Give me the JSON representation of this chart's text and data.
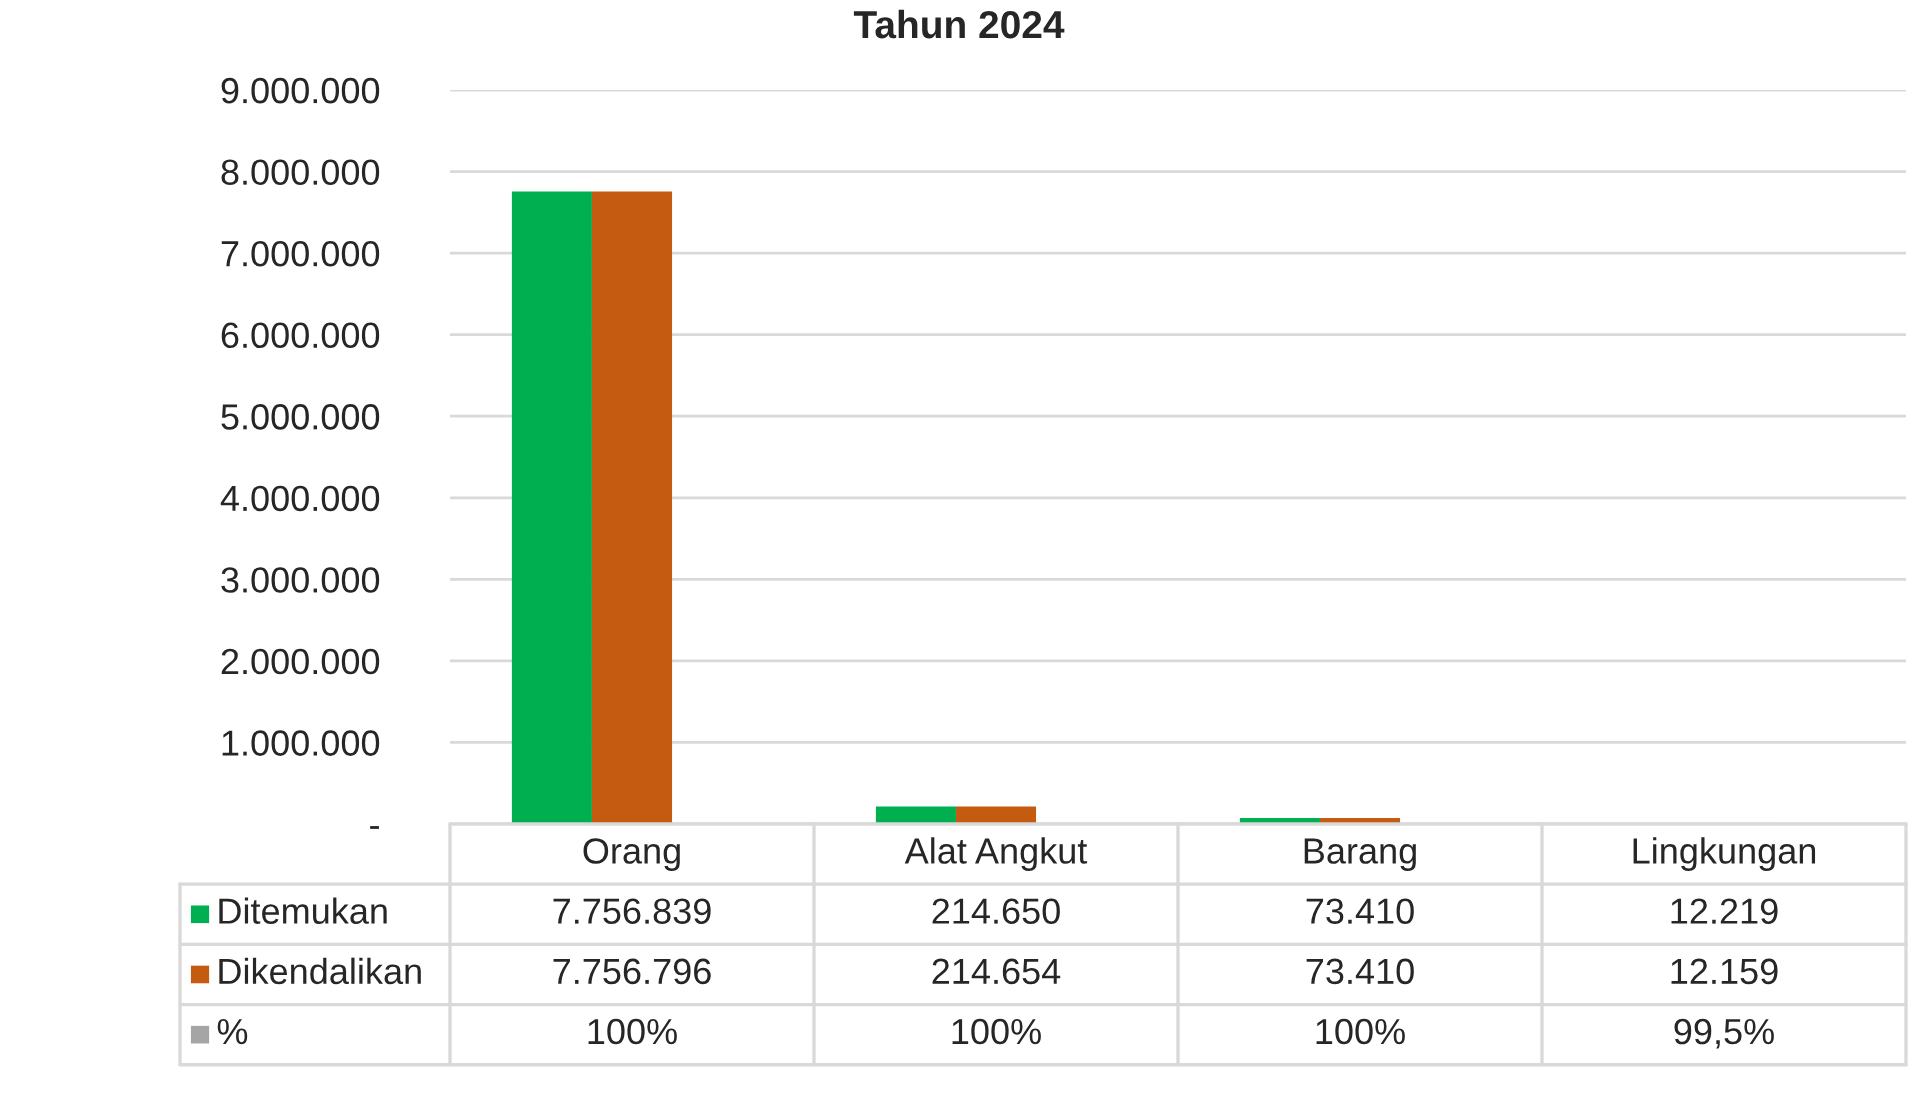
{
  "chart_data": {
    "type": "bar",
    "title": "Tahun 2024",
    "categories": [
      "Orang",
      "Alat Angkut",
      "Barang",
      "Lingkungan"
    ],
    "series": [
      {
        "name": "Ditemukan",
        "color": "#00b050",
        "values": [
          7756839,
          214650,
          73410,
          12219
        ],
        "value_labels": [
          "7.756.839",
          "214.650",
          "73.410",
          "12.219"
        ]
      },
      {
        "name": "Dikendalikan",
        "color": "#c55a11",
        "values": [
          7756796,
          214654,
          73410,
          12159
        ],
        "value_labels": [
          "7.756.796",
          "214.654",
          "73.410",
          "12.159"
        ]
      },
      {
        "name": "%",
        "color": "#a5a5a5",
        "values": [
          100,
          100,
          100,
          99.5
        ],
        "value_labels": [
          "100%",
          "100%",
          "100%",
          "99,5%"
        ]
      }
    ],
    "ylim": [
      0,
      9000000
    ],
    "yticks": [
      {
        "value": 0,
        "label": "-"
      },
      {
        "value": 1000000,
        "label": "1.000.000"
      },
      {
        "value": 2000000,
        "label": "2.000.000"
      },
      {
        "value": 3000000,
        "label": "3.000.000"
      },
      {
        "value": 4000000,
        "label": "4.000.000"
      },
      {
        "value": 5000000,
        "label": "5.000.000"
      },
      {
        "value": 6000000,
        "label": "6.000.000"
      },
      {
        "value": 7000000,
        "label": "7.000.000"
      },
      {
        "value": 8000000,
        "label": "8.000.000"
      },
      {
        "value": 9000000,
        "label": "9.000.000"
      }
    ],
    "grid": "y",
    "legend": "bottom left"
  }
}
